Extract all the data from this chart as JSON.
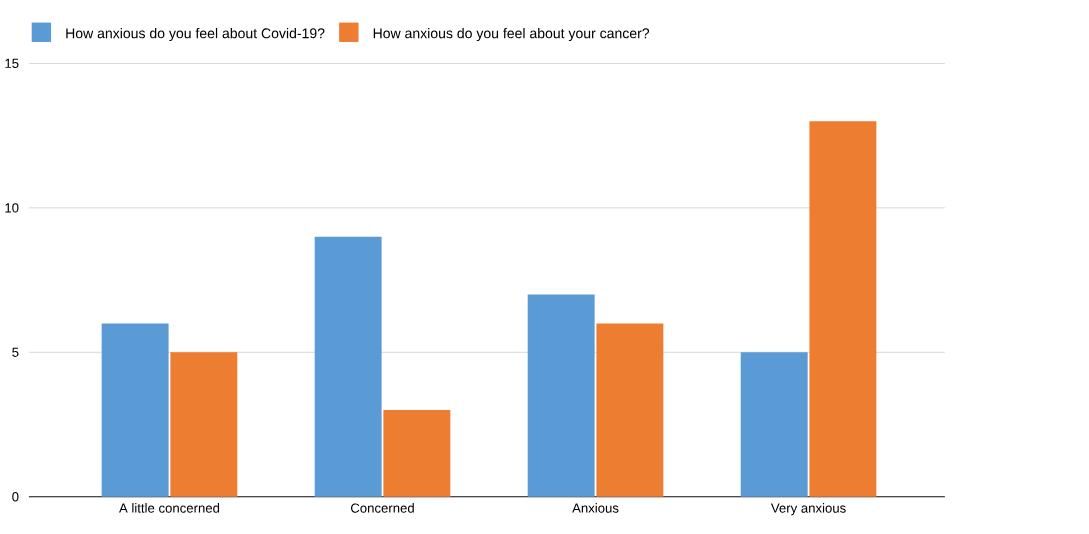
{
  "chart_data": {
    "type": "bar",
    "categories": [
      "A little concerned",
      "Concerned",
      "Anxious",
      "Very anxious"
    ],
    "series": [
      {
        "name": "How anxious do you feel about Covid-19?",
        "color": "#5b9bd5",
        "values": [
          6,
          9,
          7,
          5
        ]
      },
      {
        "name": "How anxious do you feel about your cancer?",
        "color": "#ed7d31",
        "values": [
          5,
          3,
          6,
          13
        ]
      }
    ],
    "ylim": [
      0,
      15
    ],
    "yticks": [
      0,
      5,
      10,
      15
    ],
    "grid": "y",
    "legend": "top left"
  }
}
